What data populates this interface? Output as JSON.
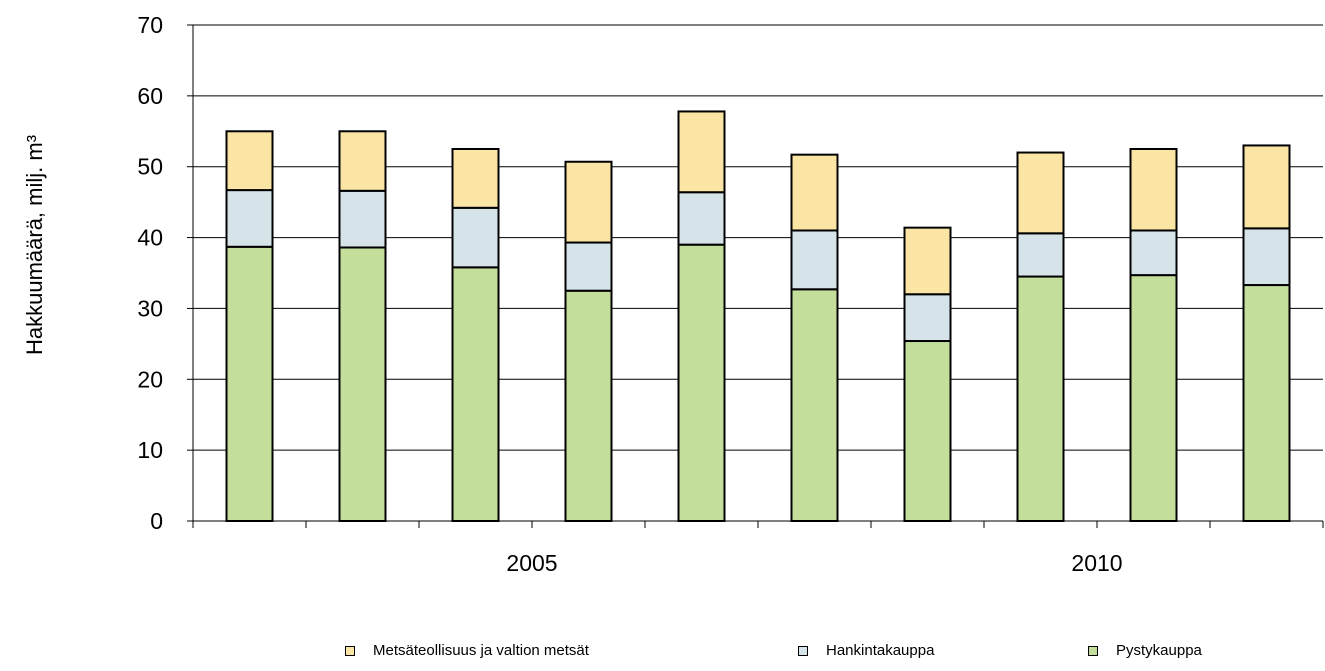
{
  "chart_data": {
    "type": "bar",
    "stacked": true,
    "title": "",
    "ylabel": "Hakkuumäärä, milj. m³",
    "ylim": [
      0,
      70
    ],
    "yticks": [
      0,
      10,
      20,
      30,
      40,
      50,
      60,
      70
    ],
    "grid": true,
    "legend_position": "bottom",
    "x_tick_labels": [
      {
        "label": "2005",
        "after_bar": 3
      },
      {
        "label": "2010",
        "after_bar": 8
      }
    ],
    "categories": [
      "",
      "",
      "",
      "",
      "",
      "",
      "",
      "",
      "",
      ""
    ],
    "series": [
      {
        "name": "Pystykauppa",
        "color": "#c4df9b",
        "values": [
          38.7,
          38.6,
          35.8,
          32.5,
          39.0,
          32.7,
          25.4,
          34.5,
          34.7,
          33.3
        ]
      },
      {
        "name": "Hankintakauppa",
        "color": "#d6e4ea",
        "values": [
          8.0,
          8.0,
          8.4,
          6.8,
          7.4,
          8.3,
          6.6,
          6.1,
          6.3,
          8.0
        ]
      },
      {
        "name": "Metsäteollisuus ja valtion metsät",
        "color": "#fbe5a4",
        "values": [
          8.3,
          8.4,
          8.3,
          11.4,
          11.4,
          10.7,
          9.4,
          11.4,
          11.5,
          11.7
        ]
      }
    ]
  },
  "legend": {
    "items": [
      {
        "label": "Metsäteollisuus ja valtion metsät",
        "color": "#fbe5a4"
      },
      {
        "label": "Hankintakauppa",
        "color": "#d6e4ea"
      },
      {
        "label": "Pystykauppa",
        "color": "#c4df9b"
      }
    ]
  }
}
